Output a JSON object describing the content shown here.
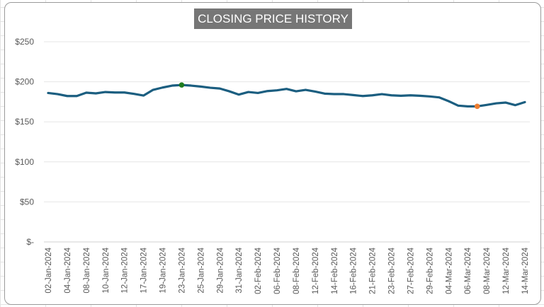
{
  "chart_data": {
    "type": "line",
    "title": "CLOSING PRICE HISTORY",
    "xlabel": "",
    "ylabel": "",
    "ylim": [
      0,
      250
    ],
    "yticks": [
      0,
      50,
      100,
      150,
      200,
      250
    ],
    "ytick_labels": [
      "$-",
      "$50",
      "$100",
      "$150",
      "$200",
      "$250"
    ],
    "grid": true,
    "x": [
      "02-Jan-2024",
      "03-Jan-2024",
      "04-Jan-2024",
      "05-Jan-2024",
      "08-Jan-2024",
      "09-Jan-2024",
      "10-Jan-2024",
      "11-Jan-2024",
      "12-Jan-2024",
      "16-Jan-2024",
      "17-Jan-2024",
      "18-Jan-2024",
      "19-Jan-2024",
      "22-Jan-2024",
      "23-Jan-2024",
      "24-Jan-2024",
      "25-Jan-2024",
      "26-Jan-2024",
      "29-Jan-2024",
      "30-Jan-2024",
      "31-Jan-2024",
      "01-Feb-2024",
      "02-Feb-2024",
      "05-Feb-2024",
      "06-Feb-2024",
      "07-Feb-2024",
      "08-Feb-2024",
      "09-Feb-2024",
      "12-Feb-2024",
      "13-Feb-2024",
      "14-Feb-2024",
      "15-Feb-2024",
      "16-Feb-2024",
      "20-Feb-2024",
      "21-Feb-2024",
      "22-Feb-2024",
      "23-Feb-2024",
      "26-Feb-2024",
      "27-Feb-2024",
      "28-Feb-2024",
      "29-Feb-2024",
      "01-Mar-2024",
      "04-Mar-2024",
      "05-Mar-2024",
      "06-Mar-2024",
      "07-Mar-2024",
      "08-Mar-2024",
      "11-Mar-2024",
      "12-Mar-2024",
      "13-Mar-2024",
      "14-Mar-2024"
    ],
    "series": [
      {
        "values": [
          186,
          184.6,
          182.2,
          182.2,
          186.4,
          185.5,
          187.2,
          186.6,
          186.6,
          184.9,
          182.8,
          189.9,
          192.8,
          195.2,
          196,
          195.2,
          194,
          192.5,
          191.6,
          188.1,
          184,
          187.2,
          186,
          188.4,
          189.3,
          191.1,
          188.1,
          189.9,
          187.8,
          185.2,
          184.6,
          184.6,
          183.4,
          182.2,
          183.1,
          184.6,
          183.1,
          182.5,
          183.1,
          182.5,
          181.7,
          180.5,
          175.8,
          170.2,
          169.3,
          169.3,
          171.1,
          173.1,
          174,
          170.8,
          174.6
        ],
        "color": "#1b5e80"
      }
    ],
    "markers": [
      {
        "label": "max",
        "date": "23-Jan-2024",
        "value": 196,
        "color": "#1e7b1e"
      },
      {
        "label": "min",
        "date": "07-Mar-2024",
        "value": 169.3,
        "color": "#ed7d31"
      }
    ],
    "tick_label_every": 2,
    "legend": "none"
  }
}
